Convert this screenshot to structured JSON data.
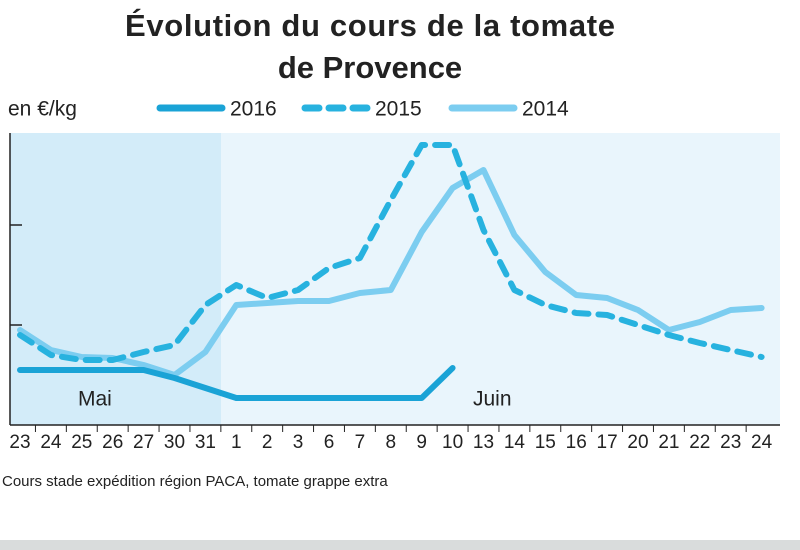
{
  "chart_data": {
    "type": "line",
    "title": [
      "Évolution du cours de la tomate",
      "de Provence"
    ],
    "y_label": "en €/kg",
    "categories": [
      "23",
      "24",
      "25",
      "26",
      "27",
      "30",
      "31",
      "1",
      "2",
      "3",
      "6",
      "7",
      "8",
      "9",
      "10",
      "13",
      "14",
      "15",
      "16",
      "17",
      "20",
      "21",
      "22",
      "23",
      "24"
    ],
    "series": [
      {
        "name": "2016",
        "color": "#1aa3d6",
        "dash": false,
        "values": [
          0.55,
          0.55,
          0.55,
          0.55,
          0.55,
          0.47,
          0.37,
          0.27,
          0.27,
          0.27,
          0.27,
          0.27,
          0.27,
          0.27,
          0.57,
          null,
          null,
          null,
          null,
          null,
          null,
          null,
          null,
          null,
          null
        ]
      },
      {
        "name": "2015",
        "color": "#27b2df",
        "dash": true,
        "values": [
          0.9,
          0.7,
          0.65,
          0.65,
          0.73,
          0.8,
          1.2,
          1.4,
          1.27,
          1.35,
          1.57,
          1.67,
          2.25,
          2.8,
          2.8,
          1.95,
          1.35,
          1.2,
          1.12,
          1.1,
          1.0,
          0.9,
          0.82,
          0.75,
          0.68
        ]
      },
      {
        "name": "2014",
        "color": "#7ccdf0",
        "dash": false,
        "values": [
          0.95,
          0.75,
          0.68,
          0.67,
          0.6,
          0.5,
          0.73,
          1.2,
          1.22,
          1.24,
          1.24,
          1.32,
          1.35,
          1.93,
          2.37,
          2.55,
          1.9,
          1.53,
          1.3,
          1.27,
          1.15,
          0.95,
          1.03,
          1.15,
          1.17
        ]
      }
    ],
    "ylim": [
      0,
      2.9
    ],
    "yticks": [
      1,
      2
    ],
    "annotations": [
      "Mai",
      "Juin"
    ],
    "source": "Cours stade expédition région  PACA, tomate grappe extra"
  }
}
